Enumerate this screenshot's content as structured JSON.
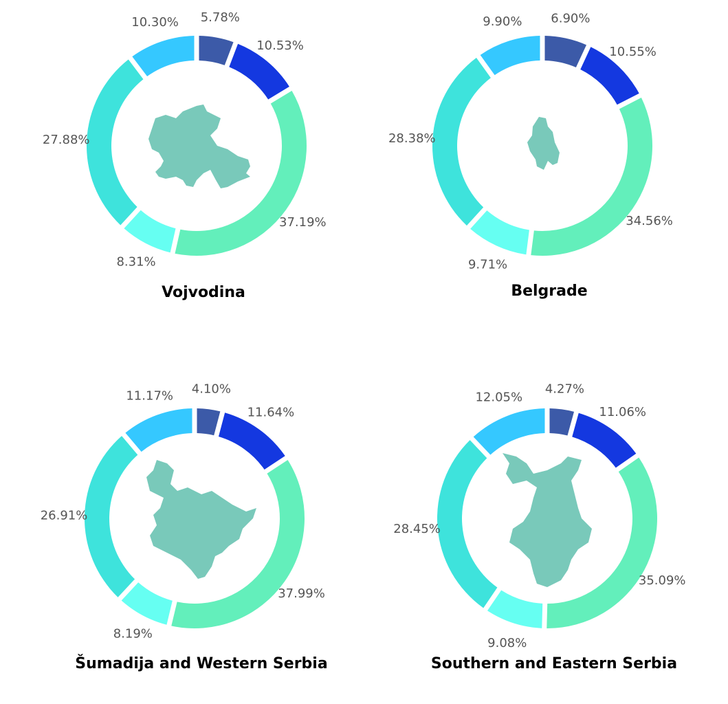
{
  "chart_data": [
    {
      "type": "pie",
      "title": "Vojvodina",
      "categories": [
        "",
        "",
        "",
        "",
        "",
        ""
      ],
      "values": [
        5.78,
        10.53,
        37.19,
        8.31,
        27.88,
        10.3
      ],
      "labels": [
        "5.78%",
        "10.53%",
        "37.19%",
        "8.31%",
        "27.88%",
        "10.30%"
      ],
      "colors": [
        "#3c5aa8",
        "#1438e0",
        "#63efbb",
        "#66fff2",
        "#3ee3dc",
        "#35c8ff"
      ],
      "region_shape_color": "#79c9ba",
      "shape": "vojvodina"
    },
    {
      "type": "pie",
      "title": "Belgrade",
      "categories": [
        "",
        "",
        "",
        "",
        "",
        ""
      ],
      "values": [
        6.9,
        10.55,
        34.56,
        9.71,
        28.38,
        9.9
      ],
      "labels": [
        "6.90%",
        "10.55%",
        "34.56%",
        "9.71%",
        "28.38%",
        "9.90%"
      ],
      "colors": [
        "#3c5aa8",
        "#1438e0",
        "#63efbb",
        "#66fff2",
        "#3ee3dc",
        "#35c8ff"
      ],
      "region_shape_color": "#79c9ba",
      "shape": "belgrade"
    },
    {
      "type": "pie",
      "title": "Šumadija and Western Serbia",
      "categories": [
        "",
        "",
        "",
        "",
        "",
        ""
      ],
      "values": [
        4.1,
        11.64,
        37.99,
        8.19,
        26.91,
        11.17
      ],
      "labels": [
        "4.10%",
        "11.64%",
        "37.99%",
        "8.19%",
        "26.91%",
        "11.17%"
      ],
      "colors": [
        "#3c5aa8",
        "#1438e0",
        "#63efbb",
        "#66fff2",
        "#3ee3dc",
        "#35c8ff"
      ],
      "region_shape_color": "#79c9ba",
      "shape": "sumadija"
    },
    {
      "type": "pie",
      "title": "Southern and Eastern Serbia",
      "categories": [
        "",
        "",
        "",
        "",
        "",
        ""
      ],
      "values": [
        4.27,
        11.06,
        35.09,
        9.08,
        28.45,
        12.05
      ],
      "labels": [
        "4.27%",
        "11.06%",
        "35.09%",
        "9.08%",
        "28.45%",
        "12.05%"
      ],
      "colors": [
        "#3c5aa8",
        "#1438e0",
        "#63efbb",
        "#66fff2",
        "#3ee3dc",
        "#35c8ff"
      ],
      "region_shape_color": "#79c9ba",
      "shape": "southeast"
    }
  ]
}
